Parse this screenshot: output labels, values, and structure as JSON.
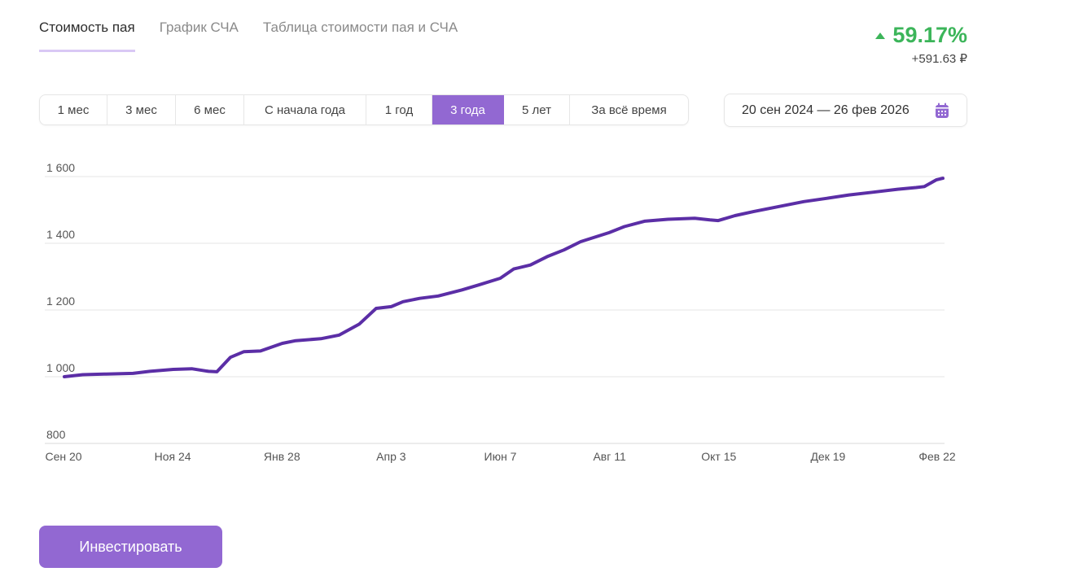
{
  "tabs": [
    {
      "label": "Стоимость пая"
    },
    {
      "label": "График СЧА"
    },
    {
      "label": "Таблица стоимости пая и СЧА"
    }
  ],
  "summary": {
    "change_percent": "59.17%",
    "change_abs": "+591.63 ₽",
    "positive_color": "#3cb55a"
  },
  "periods": [
    {
      "label": "1 мес"
    },
    {
      "label": "3 мес"
    },
    {
      "label": "6 мес"
    },
    {
      "label": "С начала года"
    },
    {
      "label": "1 год"
    },
    {
      "label": "3 года",
      "selected": true
    },
    {
      "label": "5 лет"
    },
    {
      "label": "За всё время"
    }
  ],
  "date_range": {
    "label": "20 сен 2024 — 26 фев 2026",
    "icon": "calendar-icon"
  },
  "invest_button": {
    "label": "Инвестировать"
  },
  "colors": {
    "accent": "#9268d2",
    "line": "#5b2ea6",
    "grid": "#e6e6e6"
  },
  "chart_data": {
    "type": "line",
    "title": "",
    "xlabel": "",
    "ylabel": "",
    "ylim": [
      800,
      1600
    ],
    "xlim": [
      "2024-09-20",
      "2026-02-26"
    ],
    "y_ticks": [
      800,
      1000,
      1200,
      1400,
      1600
    ],
    "y_tick_labels": [
      "800",
      "1 000",
      "1 200",
      "1 400",
      "1 600"
    ],
    "x_tick_labels": [
      "Сен 20",
      "Ноя 24",
      "Янв 28",
      "Апр 3",
      "Июн 7",
      "Авг 11",
      "Окт 15",
      "Дек 19",
      "Фев 22"
    ],
    "grid": true,
    "series": [
      {
        "x": [
          "2024-09-20",
          "2024-10-01",
          "2024-10-15",
          "2024-10-31",
          "2024-11-10",
          "2024-11-24",
          "2024-12-05",
          "2024-12-15",
          "2024-12-20",
          "2024-12-28",
          "2025-01-05",
          "2025-01-15",
          "2025-01-28",
          "2025-02-05",
          "2025-02-20",
          "2025-03-03",
          "2025-03-15",
          "2025-03-25",
          "2025-04-03",
          "2025-04-10",
          "2025-04-20",
          "2025-05-01",
          "2025-05-15",
          "2025-05-25",
          "2025-06-07",
          "2025-06-15",
          "2025-06-25",
          "2025-07-05",
          "2025-07-15",
          "2025-07-25",
          "2025-08-11",
          "2025-08-20",
          "2025-09-01",
          "2025-09-15",
          "2025-10-01",
          "2025-10-10",
          "2025-10-15",
          "2025-10-25",
          "2025-11-05",
          "2025-11-20",
          "2025-12-05",
          "2025-12-19",
          "2026-01-01",
          "2026-01-15",
          "2026-01-30",
          "2026-02-10",
          "2026-02-15",
          "2026-02-22",
          "2026-02-26"
        ],
        "y": [
          1000,
          1006,
          1008,
          1010,
          1016,
          1022,
          1024,
          1016,
          1015,
          1058,
          1075,
          1077,
          1100,
          1108,
          1114,
          1125,
          1158,
          1205,
          1210,
          1225,
          1235,
          1242,
          1260,
          1275,
          1295,
          1323,
          1335,
          1360,
          1380,
          1405,
          1432,
          1450,
          1466,
          1472,
          1475,
          1470,
          1468,
          1483,
          1495,
          1510,
          1525,
          1535,
          1545,
          1553,
          1562,
          1567,
          1570,
          1590,
          1595
        ]
      }
    ]
  }
}
